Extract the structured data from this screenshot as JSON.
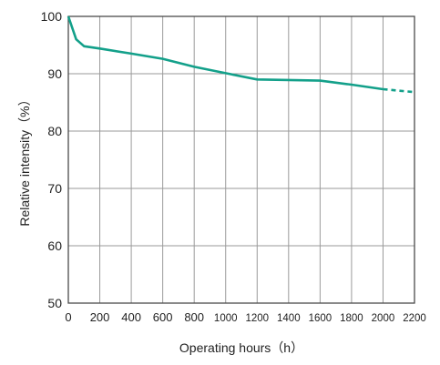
{
  "chart_data": {
    "type": "line",
    "xlabel": "Operating hours（h）",
    "ylabel": "Relative intensity（%）",
    "xlim": [
      0,
      2200
    ],
    "ylim": [
      50,
      100
    ],
    "x_ticks": [
      0,
      200,
      400,
      600,
      800,
      1000,
      1200,
      1400,
      1600,
      1800,
      2000,
      2200
    ],
    "y_ticks": [
      50,
      60,
      70,
      80,
      90,
      100
    ],
    "x_tick_labels": [
      "0",
      "200",
      "400",
      "600",
      "800",
      "1000",
      "1200",
      "1400",
      "1600",
      "1800",
      "2000",
      "2200"
    ],
    "y_tick_labels": [
      "50",
      "60",
      "70",
      "80",
      "90",
      "100"
    ],
    "grid": true,
    "line_color": "#13a08a",
    "series": [
      {
        "style": "solid",
        "x": [
          0,
          50,
          100,
          200,
          400,
          600,
          800,
          1000,
          1200,
          1400,
          1600,
          1800,
          2000
        ],
        "y": [
          100,
          96,
          94.8,
          94.4,
          93.5,
          92.6,
          91.2,
          90.1,
          89.0,
          88.9,
          88.8,
          88.1,
          87.3
        ]
      },
      {
        "style": "dashed",
        "x": [
          2000,
          2200
        ],
        "y": [
          87.3,
          86.8
        ]
      }
    ]
  }
}
